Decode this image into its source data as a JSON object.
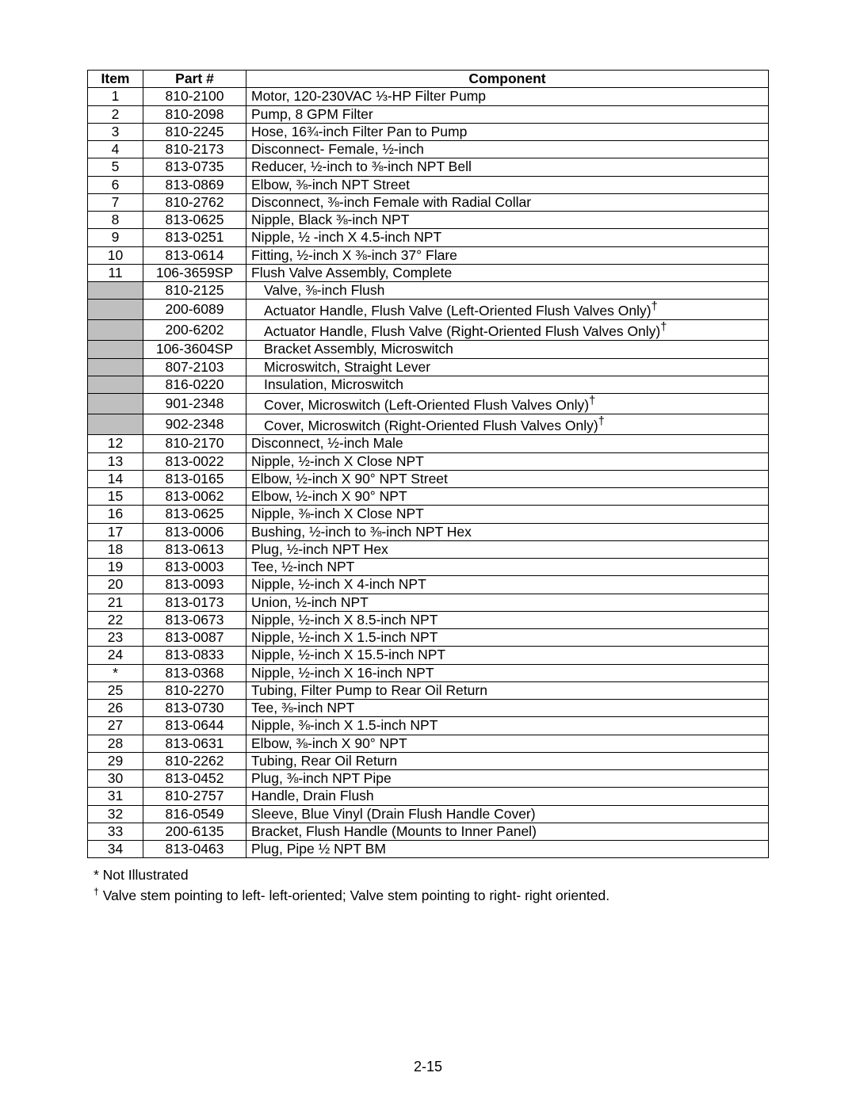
{
  "table": {
    "headers": {
      "item": "Item",
      "part": "Part #",
      "component": "Component"
    },
    "rows": [
      {
        "item": "1",
        "part": "810-2100",
        "component": "Motor, 120-230VAC ⅓-HP Filter Pump"
      },
      {
        "item": "2",
        "part": "810-2098",
        "component": "Pump, 8 GPM Filter"
      },
      {
        "item": "3",
        "part": "810-2245",
        "component": "Hose, 16¾-inch Filter Pan to Pump"
      },
      {
        "item": "4",
        "part": "810-2173",
        "component": "Disconnect- Female, ½-inch"
      },
      {
        "item": "5",
        "part": "813-0735",
        "component": "Reducer, ½-inch to ⅜-inch NPT Bell"
      },
      {
        "item": "6",
        "part": "813-0869",
        "component": "Elbow, ⅜-inch NPT Street"
      },
      {
        "item": "7",
        "part": "810-2762",
        "component": "Disconnect, ⅜-inch Female with Radial Collar"
      },
      {
        "item": "8",
        "part": "813-0625",
        "component": "Nipple, Black ⅜-inch NPT"
      },
      {
        "item": "9",
        "part": "813-0251",
        "component": "Nipple, ½ -inch X 4.5-inch NPT"
      },
      {
        "item": "10",
        "part": "813-0614",
        "component": "Fitting, ½-inch X ⅜-inch 37° Flare"
      },
      {
        "item": "11",
        "part": "106-3659SP",
        "component": "Flush Valve Assembly, Complete"
      },
      {
        "item": "",
        "part": "810-2125",
        "component": "Valve, ⅜-inch Flush",
        "shaded": true,
        "indent": true
      },
      {
        "item": "",
        "part": "200-6089",
        "component": "Actuator Handle, Flush Valve (Left-Oriented Flush Valves Only)†",
        "shaded": true,
        "indent": true
      },
      {
        "item": "",
        "part": "200-6202",
        "component": "Actuator Handle, Flush Valve (Right-Oriented Flush Valves Only)†",
        "shaded": true,
        "indent": true
      },
      {
        "item": "",
        "part": "106-3604SP",
        "component": "Bracket Assembly, Microswitch",
        "shaded": true,
        "indent": true
      },
      {
        "item": "",
        "part": "807-2103",
        "component": "Microswitch, Straight Lever",
        "shaded": true,
        "indent": true
      },
      {
        "item": "",
        "part": "816-0220",
        "component": "Insulation, Microswitch",
        "shaded": true,
        "indent": true
      },
      {
        "item": "",
        "part": "901-2348",
        "component": "Cover, Microswitch (Left-Oriented Flush Valves Only)†",
        "shaded": true,
        "indent": true
      },
      {
        "item": "",
        "part": "902-2348",
        "component": "Cover, Microswitch (Right-Oriented Flush Valves Only)†",
        "shaded": true,
        "indent": true
      },
      {
        "item": "12",
        "part": "810-2170",
        "component": "Disconnect, ½-inch Male"
      },
      {
        "item": "13",
        "part": "813-0022",
        "component": "Nipple, ½-inch X Close NPT"
      },
      {
        "item": "14",
        "part": "813-0165",
        "component": "Elbow, ½-inch X 90° NPT Street"
      },
      {
        "item": "15",
        "part": "813-0062",
        "component": "Elbow, ½-inch X 90° NPT"
      },
      {
        "item": "16",
        "part": "813-0625",
        "component": "Nipple, ⅜-inch X Close NPT"
      },
      {
        "item": "17",
        "part": "813-0006",
        "component": "Bushing, ½-inch to ⅜-inch NPT Hex"
      },
      {
        "item": "18",
        "part": "813-0613",
        "component": "Plug, ½-inch NPT Hex"
      },
      {
        "item": "19",
        "part": "813-0003",
        "component": "Tee, ½-inch NPT"
      },
      {
        "item": "20",
        "part": "813-0093",
        "component": "Nipple, ½-inch X 4-inch NPT"
      },
      {
        "item": "21",
        "part": "813-0173",
        "component": "Union, ½-inch NPT"
      },
      {
        "item": "22",
        "part": "813-0673",
        "component": "Nipple, ½-inch X 8.5-inch NPT"
      },
      {
        "item": "23",
        "part": "813-0087",
        "component": "Nipple, ½-inch X 1.5-inch NPT"
      },
      {
        "item": "24",
        "part": "813-0833",
        "component": "Nipple, ½-inch X 15.5-inch NPT"
      },
      {
        "item": "*",
        "part": "813-0368",
        "component": "Nipple, ½-inch X 16-inch NPT"
      },
      {
        "item": "25",
        "part": "810-2270",
        "component": "Tubing, Filter Pump to Rear Oil Return"
      },
      {
        "item": "26",
        "part": "813-0730",
        "component": "Tee, ⅜-inch NPT"
      },
      {
        "item": "27",
        "part": "813-0644",
        "component": "Nipple, ⅜-inch X 1.5-inch NPT"
      },
      {
        "item": "28",
        "part": "813-0631",
        "component": "Elbow, ⅜-inch X 90° NPT"
      },
      {
        "item": "29",
        "part": "810-2262",
        "component": "Tubing, Rear Oil Return"
      },
      {
        "item": "30",
        "part": "813-0452",
        "component": "Plug, ⅜-inch NPT Pipe"
      },
      {
        "item": "31",
        "part": "810-2757",
        "component": "Handle, Drain Flush"
      },
      {
        "item": "32",
        "part": "816-0549",
        "component": "Sleeve, Blue Vinyl (Drain Flush Handle Cover)"
      },
      {
        "item": "33",
        "part": "200-6135",
        "component": "Bracket, Flush Handle (Mounts to Inner Panel)"
      },
      {
        "item": "34",
        "part": "813-0463",
        "component": "Plug, Pipe ½ NPT BM"
      }
    ]
  },
  "footnotes": {
    "star": "* Not Illustrated",
    "dagger_prefix": "†",
    "dagger_text": " Valve stem pointing to left- left-oriented; Valve stem pointing to right- right oriented."
  },
  "page_number": "2-15"
}
